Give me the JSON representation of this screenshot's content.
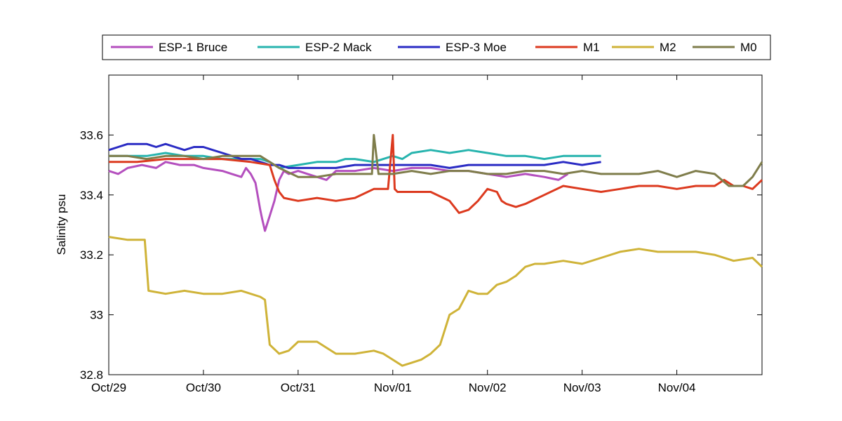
{
  "chart_data": {
    "type": "line",
    "title": "",
    "xlabel": "",
    "ylabel": "Salinity psu",
    "xlim": [
      0,
      6.9
    ],
    "ylim": [
      32.8,
      33.8
    ],
    "x_ticks": [
      {
        "value": 0,
        "label": "Oct/29"
      },
      {
        "value": 1,
        "label": "Oct/30"
      },
      {
        "value": 2,
        "label": "Oct/31"
      },
      {
        "value": 3,
        "label": "Nov/01"
      },
      {
        "value": 4,
        "label": "Nov/02"
      },
      {
        "value": 5,
        "label": "Nov/03"
      },
      {
        "value": 6,
        "label": "Nov/04"
      }
    ],
    "y_ticks": [
      {
        "value": 32.8,
        "label": "32.8"
      },
      {
        "value": 33.0,
        "label": "33"
      },
      {
        "value": 33.2,
        "label": "33.2"
      },
      {
        "value": 33.4,
        "label": "33.4"
      },
      {
        "value": 33.6,
        "label": "33.6"
      }
    ],
    "grid": false,
    "legend_position": "top",
    "series": [
      {
        "name": "ESP-1 Bruce",
        "color": "#b44fbe",
        "x": [
          0,
          0.1,
          0.2,
          0.35,
          0.5,
          0.6,
          0.75,
          0.9,
          1.0,
          1.2,
          1.3,
          1.4,
          1.45,
          1.5,
          1.55,
          1.6,
          1.62,
          1.65,
          1.7,
          1.75,
          1.8,
          1.85,
          1.9,
          2.0,
          2.1,
          2.2,
          2.3,
          2.4,
          2.6,
          2.8,
          3.0,
          3.2,
          3.4,
          3.6,
          3.8,
          4.0,
          4.2,
          4.4,
          4.6,
          4.75,
          4.85
        ],
        "y": [
          33.48,
          33.47,
          33.49,
          33.5,
          33.49,
          33.51,
          33.5,
          33.5,
          33.49,
          33.48,
          33.47,
          33.46,
          33.49,
          33.47,
          33.44,
          33.35,
          33.32,
          33.28,
          33.33,
          33.38,
          33.45,
          33.48,
          33.47,
          33.48,
          33.47,
          33.46,
          33.45,
          33.48,
          33.48,
          33.49,
          33.48,
          33.49,
          33.49,
          33.48,
          33.48,
          33.47,
          33.46,
          33.47,
          33.46,
          33.45,
          33.47
        ]
      },
      {
        "name": "ESP-2 Mack",
        "color": "#27b4ae",
        "x": [
          0,
          0.2,
          0.4,
          0.6,
          0.8,
          1.0,
          1.2,
          1.4,
          1.6,
          1.7,
          1.8,
          2.0,
          2.2,
          2.4,
          2.5,
          2.6,
          2.8,
          2.9,
          3.0,
          3.1,
          3.2,
          3.4,
          3.6,
          3.8,
          4.0,
          4.2,
          4.4,
          4.6,
          4.8,
          5.0,
          5.2
        ],
        "y": [
          33.53,
          33.53,
          33.53,
          33.54,
          33.53,
          33.53,
          33.52,
          33.52,
          33.52,
          33.51,
          33.49,
          33.5,
          33.51,
          33.51,
          33.52,
          33.52,
          33.51,
          33.52,
          33.53,
          33.52,
          33.54,
          33.55,
          33.54,
          33.55,
          33.54,
          33.53,
          33.53,
          33.52,
          33.53,
          33.53,
          33.53
        ]
      },
      {
        "name": "ESP-3 Moe",
        "color": "#2a2bc4",
        "x": [
          0,
          0.1,
          0.2,
          0.3,
          0.4,
          0.5,
          0.6,
          0.7,
          0.8,
          0.9,
          1.0,
          1.1,
          1.2,
          1.3,
          1.4,
          1.5,
          1.6,
          1.7,
          1.8,
          1.9,
          2.0,
          2.2,
          2.4,
          2.6,
          2.8,
          3.0,
          3.2,
          3.4,
          3.6,
          3.8,
          4.0,
          4.2,
          4.4,
          4.6,
          4.8,
          5.0,
          5.2
        ],
        "y": [
          33.55,
          33.56,
          33.57,
          33.57,
          33.57,
          33.56,
          33.57,
          33.56,
          33.55,
          33.56,
          33.56,
          33.55,
          33.54,
          33.53,
          33.52,
          33.52,
          33.51,
          33.5,
          33.5,
          33.49,
          33.49,
          33.49,
          33.49,
          33.5,
          33.5,
          33.5,
          33.5,
          33.5,
          33.49,
          33.5,
          33.5,
          33.5,
          33.5,
          33.5,
          33.51,
          33.5,
          33.51
        ]
      },
      {
        "name": "M1",
        "color": "#dc3a1f",
        "x": [
          0,
          0.3,
          0.6,
          0.9,
          1.2,
          1.5,
          1.7,
          1.75,
          1.8,
          1.85,
          2.0,
          2.2,
          2.4,
          2.6,
          2.8,
          2.95,
          3.0,
          3.02,
          3.05,
          3.1,
          3.2,
          3.4,
          3.6,
          3.7,
          3.8,
          3.9,
          4.0,
          4.1,
          4.15,
          4.2,
          4.3,
          4.4,
          4.6,
          4.8,
          5.0,
          5.2,
          5.4,
          5.6,
          5.8,
          6.0,
          6.2,
          6.4,
          6.5,
          6.6,
          6.7,
          6.8,
          6.9
        ],
        "y": [
          33.51,
          33.51,
          33.52,
          33.52,
          33.52,
          33.51,
          33.5,
          33.45,
          33.41,
          33.39,
          33.38,
          33.39,
          33.38,
          33.39,
          33.42,
          33.42,
          33.6,
          33.42,
          33.41,
          33.41,
          33.41,
          33.41,
          33.38,
          33.34,
          33.35,
          33.38,
          33.42,
          33.41,
          33.38,
          33.37,
          33.36,
          33.37,
          33.4,
          33.43,
          33.42,
          33.41,
          33.42,
          33.43,
          33.43,
          33.42,
          33.43,
          33.43,
          33.45,
          33.43,
          33.43,
          33.42,
          33.45
        ]
      },
      {
        "name": "M2",
        "color": "#cfb338",
        "x": [
          0,
          0.2,
          0.38,
          0.42,
          0.6,
          0.8,
          1.0,
          1.2,
          1.4,
          1.6,
          1.65,
          1.7,
          1.8,
          1.9,
          2.0,
          2.2,
          2.4,
          2.6,
          2.8,
          2.9,
          3.0,
          3.1,
          3.2,
          3.3,
          3.4,
          3.5,
          3.55,
          3.6,
          3.7,
          3.8,
          3.9,
          4.0,
          4.1,
          4.2,
          4.3,
          4.4,
          4.5,
          4.6,
          4.8,
          5.0,
          5.2,
          5.4,
          5.6,
          5.8,
          6.0,
          6.2,
          6.4,
          6.6,
          6.8,
          6.9
        ],
        "y": [
          33.26,
          33.25,
          33.25,
          33.08,
          33.07,
          33.08,
          33.07,
          33.07,
          33.08,
          33.06,
          33.05,
          32.9,
          32.87,
          32.88,
          32.91,
          32.91,
          32.87,
          32.87,
          32.88,
          32.87,
          32.85,
          32.83,
          32.84,
          32.85,
          32.87,
          32.9,
          32.95,
          33.0,
          33.02,
          33.08,
          33.07,
          33.07,
          33.1,
          33.11,
          33.13,
          33.16,
          33.17,
          33.17,
          33.18,
          33.17,
          33.19,
          33.21,
          33.22,
          33.21,
          33.21,
          33.21,
          33.2,
          33.18,
          33.19,
          33.16
        ]
      },
      {
        "name": "M0",
        "color": "#7f7d4b",
        "x": [
          0,
          0.2,
          0.4,
          0.6,
          0.8,
          1.0,
          1.2,
          1.4,
          1.6,
          1.8,
          2.0,
          2.2,
          2.4,
          2.6,
          2.78,
          2.8,
          2.85,
          2.9,
          3.0,
          3.2,
          3.4,
          3.6,
          3.8,
          4.0,
          4.2,
          4.4,
          4.6,
          4.8,
          5.0,
          5.2,
          5.4,
          5.6,
          5.8,
          6.0,
          6.2,
          6.4,
          6.55,
          6.7,
          6.8,
          6.9
        ],
        "y": [
          33.53,
          33.53,
          33.52,
          33.53,
          33.53,
          33.52,
          33.53,
          33.53,
          33.53,
          33.49,
          33.46,
          33.46,
          33.47,
          33.47,
          33.47,
          33.6,
          33.47,
          33.47,
          33.47,
          33.48,
          33.47,
          33.48,
          33.48,
          33.47,
          33.47,
          33.48,
          33.48,
          33.47,
          33.48,
          33.47,
          33.47,
          33.47,
          33.48,
          33.46,
          33.48,
          33.47,
          33.43,
          33.43,
          33.46,
          33.51
        ]
      }
    ]
  }
}
